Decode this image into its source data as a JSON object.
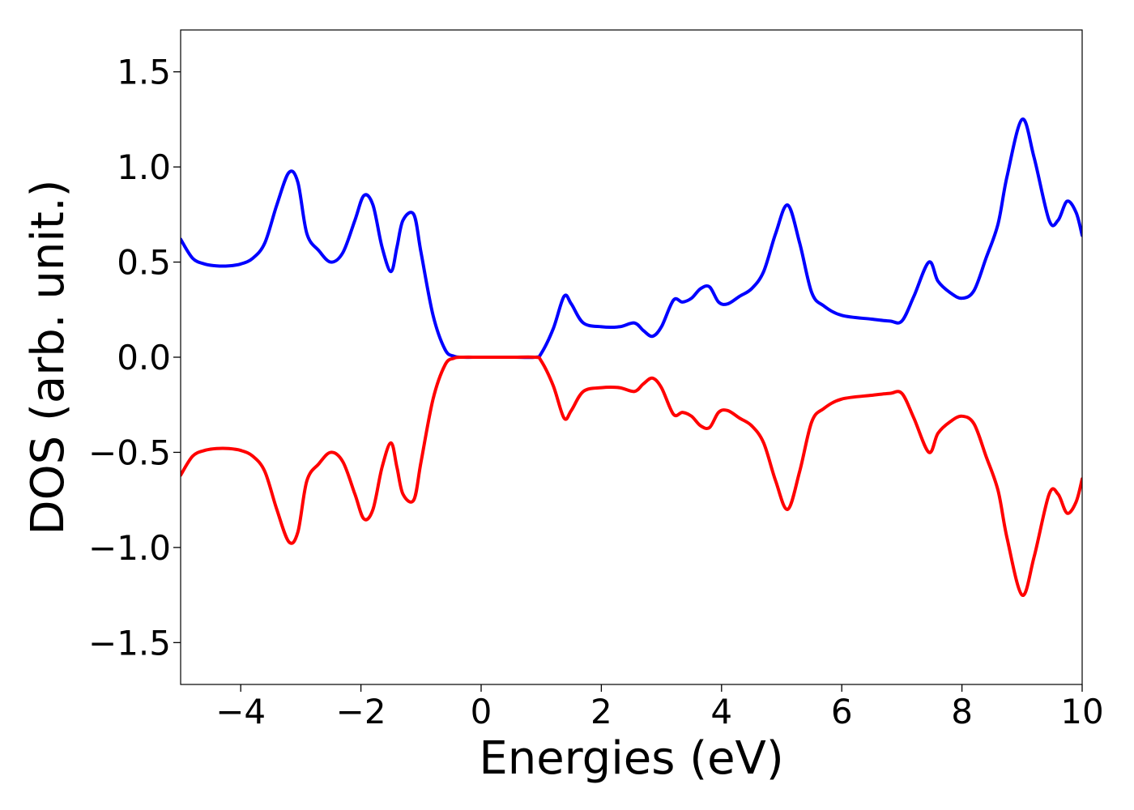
{
  "chart_data": {
    "type": "line",
    "title": "",
    "xlabel": "Energies (eV)",
    "ylabel": "DOS (arb. unit.)",
    "xlim": [
      -5,
      10
    ],
    "ylim": [
      -1.72,
      1.72
    ],
    "grid": false,
    "xticks": [
      {
        "value": -4,
        "label": "−4"
      },
      {
        "value": -2,
        "label": "−2"
      },
      {
        "value": 0,
        "label": "0"
      },
      {
        "value": 2,
        "label": "2"
      },
      {
        "value": 4,
        "label": "4"
      },
      {
        "value": 6,
        "label": "6"
      },
      {
        "value": 8,
        "label": "8"
      },
      {
        "value": 10,
        "label": "10"
      }
    ],
    "yticks": [
      {
        "value": 1.5,
        "label": "1.5"
      },
      {
        "value": 1.0,
        "label": "1.0"
      },
      {
        "value": 0.5,
        "label": "0.5"
      },
      {
        "value": 0.0,
        "label": "0.0"
      },
      {
        "value": -0.5,
        "label": "−0.5"
      },
      {
        "value": -1.0,
        "label": "−1.0"
      },
      {
        "value": -1.5,
        "label": "−1.5"
      }
    ],
    "series": [
      {
        "color": "#0000ff",
        "x": [
          -5.0,
          -4.8,
          -4.6,
          -4.4,
          -4.2,
          -4.0,
          -3.8,
          -3.6,
          -3.4,
          -3.2,
          -3.05,
          -2.9,
          -2.7,
          -2.5,
          -2.3,
          -2.1,
          -1.95,
          -1.8,
          -1.65,
          -1.5,
          -1.4,
          -1.3,
          -1.12,
          -1.0,
          -0.8,
          -0.6,
          -0.45,
          -0.3,
          0.0,
          0.5,
          0.9,
          1.0,
          1.2,
          1.38,
          1.5,
          1.7,
          2.0,
          2.3,
          2.55,
          2.7,
          2.85,
          3.0,
          3.2,
          3.35,
          3.5,
          3.65,
          3.8,
          3.95,
          4.1,
          4.3,
          4.5,
          4.7,
          4.9,
          5.1,
          5.3,
          5.5,
          5.7,
          6.0,
          6.5,
          6.8,
          7.0,
          7.2,
          7.45,
          7.6,
          7.8,
          8.0,
          8.2,
          8.4,
          8.6,
          8.75,
          9.0,
          9.2,
          9.45,
          9.6,
          9.75,
          9.9,
          10.0
        ],
        "y": [
          0.62,
          0.52,
          0.49,
          0.48,
          0.48,
          0.49,
          0.52,
          0.6,
          0.8,
          0.97,
          0.92,
          0.65,
          0.56,
          0.5,
          0.55,
          0.72,
          0.85,
          0.8,
          0.58,
          0.45,
          0.58,
          0.72,
          0.75,
          0.55,
          0.22,
          0.04,
          0.005,
          0.0,
          0.0,
          0.0,
          0.0,
          0.02,
          0.15,
          0.32,
          0.28,
          0.18,
          0.16,
          0.16,
          0.18,
          0.14,
          0.11,
          0.16,
          0.3,
          0.29,
          0.31,
          0.36,
          0.37,
          0.29,
          0.28,
          0.32,
          0.36,
          0.45,
          0.65,
          0.8,
          0.6,
          0.34,
          0.27,
          0.22,
          0.2,
          0.19,
          0.19,
          0.32,
          0.5,
          0.4,
          0.34,
          0.31,
          0.35,
          0.52,
          0.7,
          0.95,
          1.25,
          1.05,
          0.72,
          0.72,
          0.82,
          0.76,
          0.64
        ]
      },
      {
        "color": "#ff0000",
        "x": [
          -5.0,
          -4.8,
          -4.6,
          -4.4,
          -4.2,
          -4.0,
          -3.8,
          -3.6,
          -3.4,
          -3.2,
          -3.05,
          -2.9,
          -2.7,
          -2.5,
          -2.3,
          -2.1,
          -1.95,
          -1.8,
          -1.65,
          -1.5,
          -1.4,
          -1.3,
          -1.12,
          -1.0,
          -0.8,
          -0.6,
          -0.45,
          -0.3,
          0.0,
          0.5,
          0.9,
          1.0,
          1.2,
          1.38,
          1.5,
          1.7,
          2.0,
          2.3,
          2.55,
          2.7,
          2.85,
          3.0,
          3.2,
          3.35,
          3.5,
          3.65,
          3.8,
          3.95,
          4.1,
          4.3,
          4.5,
          4.7,
          4.9,
          5.1,
          5.3,
          5.5,
          5.7,
          6.0,
          6.5,
          6.8,
          7.0,
          7.2,
          7.45,
          7.6,
          7.8,
          8.0,
          8.2,
          8.4,
          8.6,
          8.75,
          9.0,
          9.2,
          9.45,
          9.6,
          9.75,
          9.9,
          10.0
        ],
        "y": [
          -0.62,
          -0.52,
          -0.49,
          -0.48,
          -0.48,
          -0.49,
          -0.52,
          -0.6,
          -0.8,
          -0.97,
          -0.92,
          -0.65,
          -0.56,
          -0.5,
          -0.55,
          -0.72,
          -0.85,
          -0.8,
          -0.58,
          -0.45,
          -0.58,
          -0.72,
          -0.75,
          -0.55,
          -0.22,
          -0.04,
          -0.005,
          0.0,
          0.0,
          0.0,
          0.0,
          -0.02,
          -0.15,
          -0.32,
          -0.28,
          -0.18,
          -0.16,
          -0.16,
          -0.18,
          -0.14,
          -0.11,
          -0.16,
          -0.3,
          -0.29,
          -0.31,
          -0.36,
          -0.37,
          -0.29,
          -0.28,
          -0.32,
          -0.36,
          -0.45,
          -0.65,
          -0.8,
          -0.6,
          -0.34,
          -0.27,
          -0.22,
          -0.2,
          -0.19,
          -0.19,
          -0.32,
          -0.5,
          -0.4,
          -0.34,
          -0.31,
          -0.35,
          -0.52,
          -0.7,
          -0.95,
          -1.25,
          -1.05,
          -0.72,
          -0.72,
          -0.82,
          -0.76,
          -0.64
        ]
      }
    ]
  }
}
